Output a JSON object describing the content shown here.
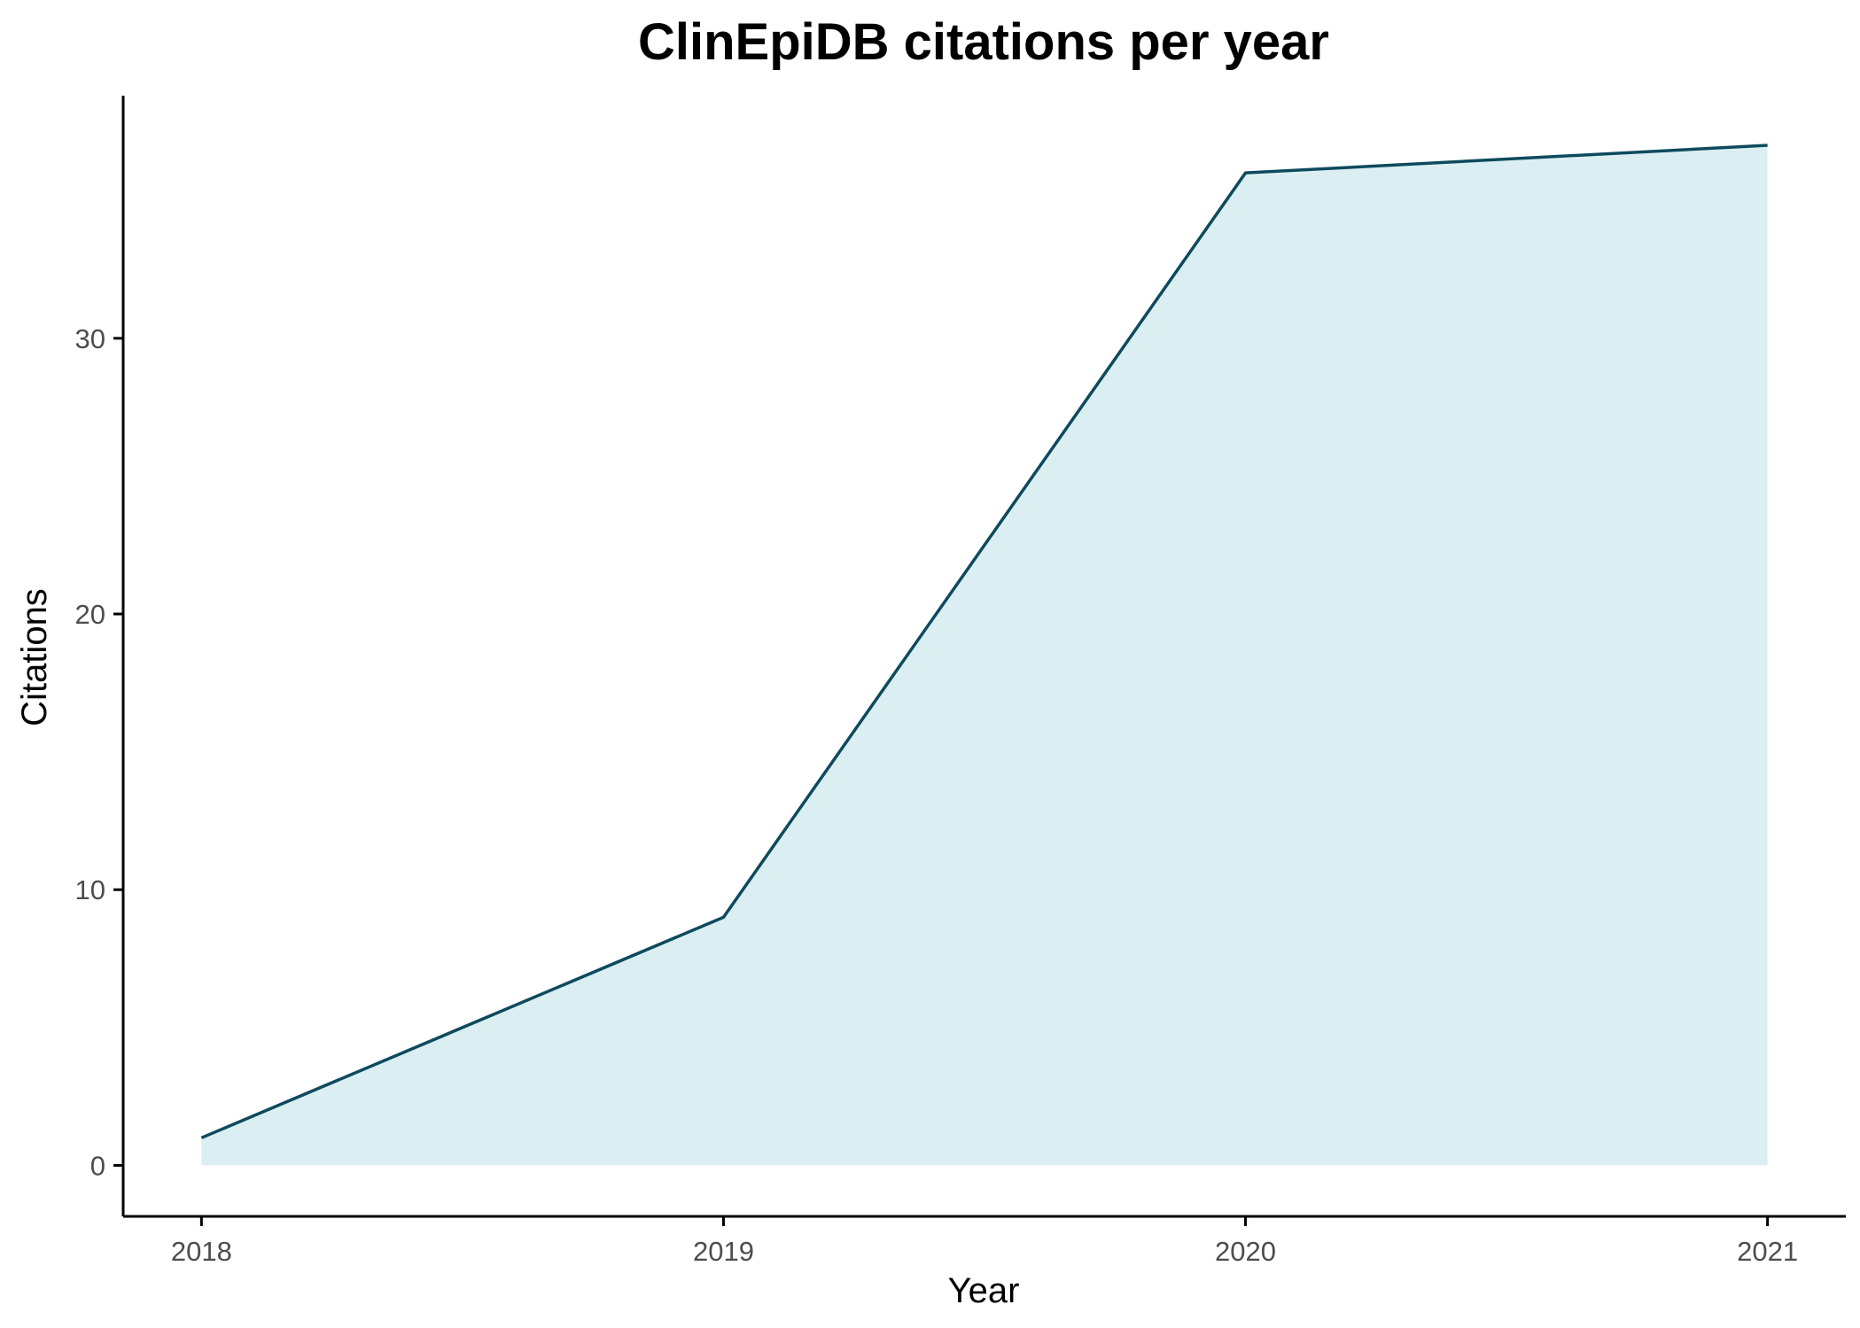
{
  "chart_data": {
    "type": "area",
    "title": "ClinEpiDB citations per year",
    "xlabel": "Year",
    "ylabel": "Citations",
    "x": [
      2018,
      2019,
      2020,
      2021
    ],
    "series": [
      {
        "values": [
          1,
          9,
          36,
          37
        ]
      }
    ],
    "xticks": [
      "2018",
      "2019",
      "2020",
      "2021"
    ],
    "yticks": [
      0,
      10,
      20,
      30
    ],
    "xlim": [
      2017.85,
      2021.15
    ],
    "ylim": [
      -1.85,
      38.8
    ],
    "grid": false,
    "legend": "none",
    "colors": {
      "line": "#0e4a5e",
      "fill": "#dbeff2",
      "axis": "#000000",
      "tick_text": "#4d4d4d"
    }
  }
}
